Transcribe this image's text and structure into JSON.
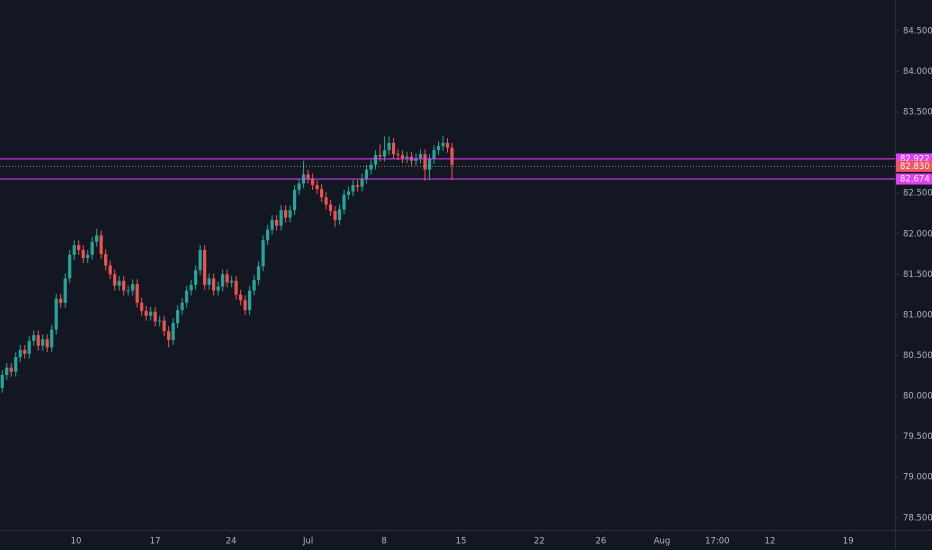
{
  "chart_data": {
    "type": "candlestick",
    "x": [
      0,
      1,
      2,
      3,
      4,
      5,
      6,
      7,
      8,
      9,
      10,
      11,
      12,
      13,
      14,
      15,
      16,
      17,
      18,
      19,
      20,
      21,
      22,
      23,
      24,
      25,
      26,
      27,
      28,
      29,
      30,
      31,
      32,
      33,
      34,
      35,
      36,
      37,
      38,
      39,
      40,
      41,
      42,
      43,
      44,
      45,
      46,
      47,
      48,
      49,
      50,
      51,
      52,
      53,
      54,
      55,
      56,
      57,
      58,
      59,
      60,
      61,
      62,
      63,
      64,
      65,
      66,
      67,
      68,
      69,
      70,
      71,
      72,
      73,
      74,
      75,
      76,
      77,
      78,
      79,
      80,
      81,
      82,
      83,
      84,
      85,
      86,
      87,
      88,
      89,
      90,
      91,
      92,
      93,
      94,
      95,
      96,
      97,
      98,
      99,
      100
    ],
    "open": [
      80.1,
      80.26,
      80.35,
      80.3,
      80.48,
      80.57,
      80.52,
      80.68,
      80.75,
      80.62,
      80.7,
      80.6,
      80.82,
      81.2,
      81.15,
      81.45,
      81.74,
      81.86,
      81.8,
      81.7,
      81.74,
      81.9,
      81.98,
      81.75,
      81.61,
      81.5,
      81.36,
      81.42,
      81.3,
      81.3,
      81.38,
      81.15,
      81.05,
      80.99,
      81.04,
      80.92,
      80.93,
      80.8,
      80.69,
      80.9,
      81.06,
      81.15,
      81.3,
      81.37,
      81.55,
      81.8,
      81.37,
      81.45,
      81.3,
      81.35,
      81.5,
      81.4,
      81.42,
      81.25,
      81.18,
      81.06,
      81.3,
      81.43,
      81.6,
      81.92,
      82.05,
      82.17,
      82.1,
      82.29,
      82.2,
      82.29,
      82.54,
      82.62,
      82.73,
      82.68,
      82.6,
      82.55,
      82.45,
      82.36,
      82.28,
      82.17,
      82.3,
      82.48,
      82.52,
      82.6,
      82.58,
      82.68,
      82.79,
      82.85,
      82.97,
      82.95,
      83.03,
      83.12,
      82.98,
      82.97,
      82.93,
      82.95,
      82.9,
      82.93,
      82.98,
      82.79,
      82.92,
      83.03,
      83.08,
      83.12,
      83.06
    ],
    "high": [
      80.32,
      80.41,
      80.41,
      80.54,
      80.63,
      80.63,
      80.74,
      80.81,
      80.81,
      80.76,
      80.76,
      80.88,
      81.26,
      81.26,
      81.51,
      81.8,
      81.92,
      81.92,
      81.86,
      81.8,
      81.96,
      82.06,
      82.04,
      81.81,
      81.67,
      81.56,
      81.48,
      81.48,
      81.36,
      81.44,
      81.44,
      81.21,
      81.11,
      81.1,
      81.1,
      80.99,
      80.99,
      80.86,
      80.96,
      81.12,
      81.21,
      81.36,
      81.43,
      81.61,
      81.86,
      81.86,
      81.51,
      81.51,
      81.41,
      81.56,
      81.56,
      81.48,
      81.48,
      81.31,
      81.24,
      81.36,
      81.49,
      81.66,
      81.98,
      82.11,
      82.23,
      82.23,
      82.35,
      82.35,
      82.35,
      82.6,
      82.68,
      82.9,
      82.79,
      82.74,
      82.66,
      82.61,
      82.51,
      82.42,
      82.34,
      82.36,
      82.54,
      82.58,
      82.66,
      82.66,
      82.74,
      82.85,
      82.91,
      83.03,
      83.1,
      83.2,
      83.2,
      83.18,
      83.04,
      83.03,
      83.01,
      83.01,
      82.99,
      83.04,
      83.04,
      82.98,
      83.09,
      83.14,
      83.21,
      83.18,
      83.12
    ],
    "low": [
      80.04,
      80.2,
      80.24,
      80.24,
      80.42,
      80.46,
      80.46,
      80.62,
      80.56,
      80.56,
      80.54,
      80.54,
      80.76,
      81.09,
      81.09,
      81.39,
      81.68,
      81.74,
      81.64,
      81.64,
      81.68,
      81.84,
      81.69,
      81.55,
      81.44,
      81.3,
      81.3,
      81.24,
      81.24,
      81.24,
      81.09,
      80.99,
      80.93,
      80.93,
      80.86,
      80.86,
      80.74,
      80.6,
      80.63,
      80.84,
      81.0,
      81.09,
      81.24,
      81.31,
      81.49,
      81.31,
      81.31,
      81.24,
      81.24,
      81.29,
      81.34,
      81.34,
      81.19,
      81.12,
      81.0,
      81.0,
      81.24,
      81.37,
      81.54,
      81.86,
      81.99,
      82.04,
      82.04,
      82.14,
      82.14,
      82.23,
      82.48,
      82.56,
      82.62,
      82.54,
      82.49,
      82.39,
      82.3,
      82.22,
      82.08,
      82.11,
      82.24,
      82.42,
      82.46,
      82.52,
      82.52,
      82.62,
      82.73,
      82.79,
      82.89,
      82.89,
      82.97,
      82.92,
      82.91,
      82.87,
      82.87,
      82.84,
      82.84,
      82.87,
      82.65,
      82.66,
      82.86,
      82.97,
      83.02,
      83.0,
      82.66
    ],
    "close": [
      80.26,
      80.35,
      80.3,
      80.48,
      80.57,
      80.52,
      80.68,
      80.75,
      80.62,
      80.7,
      80.6,
      80.82,
      81.2,
      81.15,
      81.45,
      81.74,
      81.86,
      81.8,
      81.7,
      81.74,
      81.9,
      81.98,
      81.75,
      81.61,
      81.5,
      81.36,
      81.42,
      81.3,
      81.3,
      81.38,
      81.15,
      81.05,
      80.99,
      81.04,
      80.92,
      80.93,
      80.8,
      80.69,
      80.9,
      81.06,
      81.15,
      81.3,
      81.37,
      81.55,
      81.8,
      81.37,
      81.45,
      81.3,
      81.35,
      81.5,
      81.4,
      81.42,
      81.25,
      81.18,
      81.06,
      81.3,
      81.43,
      81.6,
      81.92,
      82.05,
      82.17,
      82.1,
      82.29,
      82.2,
      82.29,
      82.54,
      82.62,
      82.73,
      82.68,
      82.6,
      82.55,
      82.45,
      82.36,
      82.28,
      82.17,
      82.3,
      82.48,
      82.52,
      82.6,
      82.58,
      82.68,
      82.79,
      82.85,
      82.97,
      82.95,
      83.03,
      83.12,
      82.98,
      82.97,
      82.93,
      82.95,
      82.9,
      82.93,
      82.98,
      82.79,
      82.92,
      83.03,
      83.08,
      83.12,
      83.06,
      82.85
    ],
    "up_color": "#26a69a",
    "down_color": "#ef5350",
    "xlim": [
      -0.5,
      198.5
    ],
    "xticks": [
      {
        "value": 16.4,
        "label": "10"
      },
      {
        "value": 34.0,
        "label": "17"
      },
      {
        "value": 50.9,
        "label": "24"
      },
      {
        "value": 68.0,
        "label": "Jul"
      },
      {
        "value": 84.9,
        "label": "8"
      },
      {
        "value": 102.0,
        "label": "15"
      },
      {
        "value": 119.4,
        "label": "22"
      },
      {
        "value": 133.1,
        "label": "26"
      },
      {
        "value": 146.7,
        "label": "Aug"
      },
      {
        "value": 159.0,
        "label": "17:00"
      },
      {
        "value": 170.7,
        "label": "12"
      },
      {
        "value": 188.1,
        "label": "19"
      }
    ],
    "ylim": [
      78.35,
      84.88
    ],
    "yticks": [
      {
        "value": 78.5,
        "label": "78.500"
      },
      {
        "value": 79,
        "label": "79.000"
      },
      {
        "value": 79.5,
        "label": "79.500"
      },
      {
        "value": 80,
        "label": "80.000"
      },
      {
        "value": 80.5,
        "label": "80.500"
      },
      {
        "value": 81,
        "label": "81.000"
      },
      {
        "value": 81.5,
        "label": "81.500"
      },
      {
        "value": 82,
        "label": "82.000"
      },
      {
        "value": 82.5,
        "label": "82.500"
      },
      {
        "value": 83.5,
        "label": "83.500"
      },
      {
        "value": 84,
        "label": "84.000"
      },
      {
        "value": 84.5,
        "label": "84.500"
      }
    ],
    "hlines": [
      {
        "value": 82.922,
        "label": "82.922",
        "color": "#e040fb",
        "style": "solid"
      },
      {
        "value": 82.83,
        "label": "82.830",
        "color": "#f7525f",
        "style": "dotted"
      },
      {
        "value": 82.674,
        "label": "82.674",
        "color": "#e040fb",
        "style": "solid"
      }
    ]
  }
}
